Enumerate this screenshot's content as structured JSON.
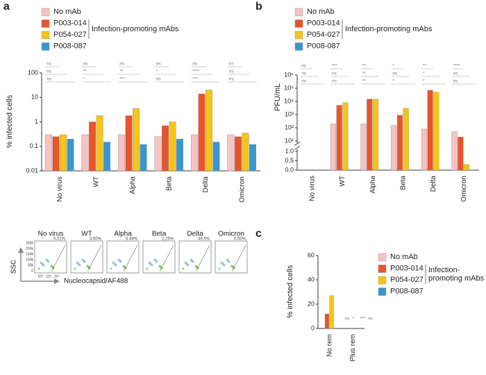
{
  "chart_data": [
    {
      "type": "bar",
      "panel_label": "a",
      "y_label": "% infected cells",
      "log_scale": true,
      "categories": [
        "No virus",
        "WT",
        "Alpha",
        "Beta",
        "Delta",
        "Omicron"
      ],
      "series": [
        {
          "name": "No mAb",
          "color": "#f6c3c4",
          "values": [
            0.3,
            0.3,
            0.3,
            0.25,
            0.3,
            0.3
          ]
        },
        {
          "name": "P003-014",
          "color": "#e8542b",
          "values": [
            0.25,
            1.0,
            1.8,
            0.7,
            14,
            0.25
          ]
        },
        {
          "name": "P054-027",
          "color": "#f5c518",
          "values": [
            0.3,
            1.8,
            3.5,
            1.0,
            20,
            0.35
          ]
        },
        {
          "name": "P008-087",
          "color": "#3a96d0",
          "values": [
            0.2,
            0.15,
            0.12,
            0.2,
            0.15,
            0.12
          ]
        }
      ],
      "ylim": [
        0.01,
        100
      ],
      "yticks": [
        0.01,
        0.1,
        1,
        10,
        100
      ],
      "legend_group_label": [
        "Infection-promoting mAbs"
      ],
      "annotations": [
        [
          "ns",
          "ns",
          "ns"
        ],
        [
          "ns",
          "**",
          "*"
        ],
        [
          "ns",
          "**",
          "***"
        ],
        [
          "ns",
          "*",
          "ns"
        ],
        [
          "ns",
          "****",
          "***"
        ],
        [
          "ns",
          "ns",
          "ns"
        ]
      ]
    },
    {
      "type": "bar",
      "panel_label": "b",
      "y_label": "PFU/mL",
      "log_scale": true,
      "axis_break": [
        1,
        10
      ],
      "categories": [
        "No virus",
        "WT",
        "Alpha",
        "Beta",
        "Delta",
        "Omicron"
      ],
      "series": [
        {
          "name": "No mAb",
          "color": "#f6c3c4",
          "values": [
            0,
            200,
            200,
            150,
            80,
            50
          ]
        },
        {
          "name": "P003-014",
          "color": "#e8542b",
          "values": [
            0,
            5000,
            15000,
            900,
            70000,
            20
          ]
        },
        {
          "name": "P054-027",
          "color": "#f5c518",
          "values": [
            0,
            8000,
            15000,
            3000,
            50000,
            0.3
          ]
        },
        {
          "name": "P008-087",
          "color": "#3a96d0",
          "values": [
            0,
            0,
            0,
            0,
            0,
            0
          ]
        }
      ],
      "ylim": [
        0,
        1000000
      ],
      "yticks": [
        {
          "value": 0,
          "label": "0.0"
        },
        {
          "value": 0.5,
          "label": "0.5"
        },
        {
          "value": 1,
          "label": "1.0"
        },
        {
          "value": 10,
          "label": "10¹"
        },
        {
          "value": 100,
          "label": "10²"
        },
        {
          "value": 1000,
          "label": "10³"
        },
        {
          "value": 10000,
          "label": "10⁴"
        },
        {
          "value": 100000,
          "label": "10⁵"
        },
        {
          "value": 1000000,
          "label": "10⁶"
        }
      ],
      "legend_group_label": [
        "Infection-promoting mAbs"
      ],
      "annotations": [
        [
          "ns",
          "ns",
          "ns"
        ],
        [
          "***",
          "ns",
          "ns"
        ],
        [
          "**",
          "**",
          "**"
        ],
        [
          "*",
          "ns",
          "*"
        ],
        [
          "**",
          "*",
          "*"
        ],
        [
          "****",
          "ns",
          "ns"
        ]
      ]
    },
    {
      "type": "bar",
      "panel_label": "c",
      "y_label": "% infected cells",
      "log_scale": false,
      "categories": [
        "No rem",
        "Plus rem"
      ],
      "series": [
        {
          "name": "No mAb",
          "color": "#f6c3c4",
          "values": [
            0,
            0
          ]
        },
        {
          "name": "P003-014",
          "color": "#e8542b",
          "values": [
            12,
            0
          ]
        },
        {
          "name": "P054-027",
          "color": "#f5c518",
          "values": [
            27,
            0
          ]
        },
        {
          "name": "P008-087",
          "color": "#3a96d0",
          "values": [
            0,
            0
          ]
        }
      ],
      "ylim": [
        0,
        60
      ],
      "yticks": [
        0,
        20,
        40,
        60
      ],
      "legend_group_label": [
        "Infection-",
        "promoting mAbs"
      ],
      "annotations": [
        [
          "ns",
          "*",
          "***",
          "ns"
        ]
      ]
    }
  ],
  "flow": {
    "y_label": "SSC",
    "x_label": "Nucleocapsid/AF488",
    "y_ticks": [
      "250k",
      "200k",
      "150k",
      "100k",
      "50k",
      "0"
    ],
    "x_ticks": [
      "10²",
      "10³",
      "10⁴"
    ],
    "panels": [
      {
        "title": "No virus",
        "percent": "0.01%"
      },
      {
        "title": "WT",
        "percent": "3.50%"
      },
      {
        "title": "Alpha",
        "percent": "5.49%"
      },
      {
        "title": "Beta",
        "percent": "2.25%"
      },
      {
        "title": "Delta",
        "percent": "49.5%"
      },
      {
        "title": "Omicron",
        "percent": "0.00%"
      }
    ]
  }
}
